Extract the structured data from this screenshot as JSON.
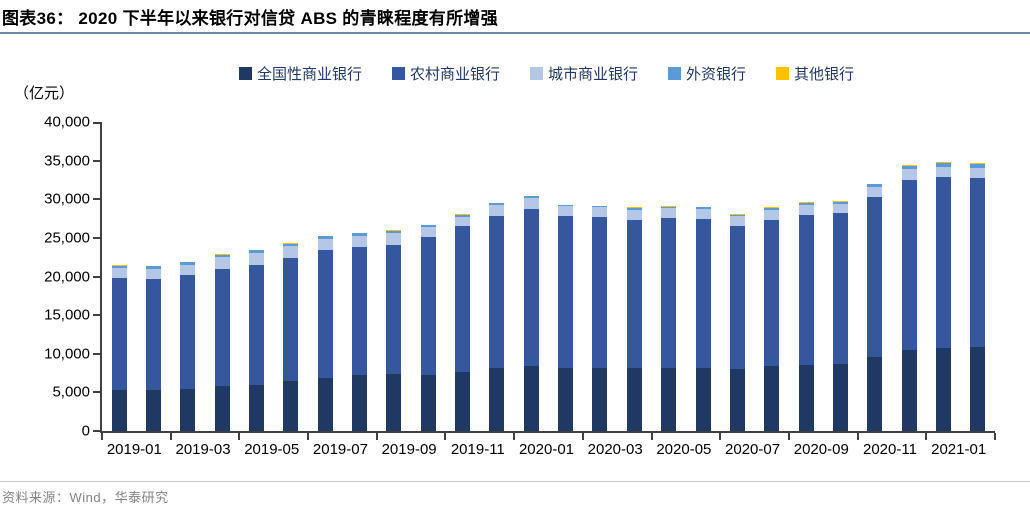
{
  "header": {
    "title": "图表36：  2020 下半年以来银行对信贷 ABS 的青睐程度有所增强"
  },
  "footer": {
    "source": "资料来源：Wind，华泰研究"
  },
  "colors": {
    "title_rule": "#6E89A9",
    "axis": "#404040",
    "footer_rule": "#C6C6C6",
    "footer_text": "#838383",
    "legend_text": "#1F3864"
  },
  "chart_data": {
    "type": "bar",
    "stacked": true,
    "title": "2020 下半年以来银行对信贷 ABS 的青睐程度有所增强",
    "unit_label": "（亿元）",
    "xlabel": "",
    "ylabel": "亿元",
    "ylim": [
      0,
      40000
    ],
    "ytick_step": 5000,
    "grid": false,
    "legend_position": "top",
    "categories": [
      "2019-01",
      "2019-02",
      "2019-03",
      "2019-04",
      "2019-05",
      "2019-06",
      "2019-07",
      "2019-08",
      "2019-09",
      "2019-10",
      "2019-11",
      "2019-12",
      "2020-01",
      "2020-02",
      "2020-03",
      "2020-04",
      "2020-05",
      "2020-06",
      "2020-07",
      "2020-08",
      "2020-09",
      "2020-10",
      "2020-11",
      "2020-12",
      "2021-01",
      "2021-02"
    ],
    "xtick_labels": [
      "2019-01",
      "2019-03",
      "2019-05",
      "2019-07",
      "2019-09",
      "2019-11",
      "2020-01",
      "2020-03",
      "2020-05",
      "2020-07",
      "2020-09",
      "2020-11",
      "2021-01"
    ],
    "series": [
      {
        "name": "全国性商业银行",
        "color": "#1F3864",
        "values": [
          5250,
          5250,
          5450,
          5800,
          6000,
          6450,
          6900,
          7300,
          7400,
          7300,
          7650,
          8150,
          8400,
          8100,
          8150,
          8100,
          8100,
          8170,
          8000,
          8390,
          8550,
          8680,
          9550,
          10480,
          10740,
          10820
        ]
      },
      {
        "name": "农村商业银行",
        "color": "#34579D",
        "values": [
          14500,
          14450,
          14700,
          15150,
          15450,
          16000,
          16550,
          16500,
          16700,
          17800,
          18850,
          19700,
          20400,
          19700,
          19550,
          19270,
          19490,
          19290,
          18550,
          18940,
          19350,
          19510,
          20750,
          22000,
          22160,
          21960
        ]
      },
      {
        "name": "城市商业银行",
        "color": "#B4C7E7",
        "values": [
          1370,
          1330,
          1400,
          1580,
          1600,
          1500,
          1450,
          1500,
          1500,
          1290,
          1250,
          1380,
          1350,
          1290,
          1250,
          1250,
          1240,
          1240,
          1250,
          1290,
          1360,
          1160,
          1350,
          1500,
          1290,
          1320
        ]
      },
      {
        "name": "外资银行",
        "color": "#5B9BD5",
        "values": [
          290,
          310,
          310,
          300,
          330,
          310,
          340,
          320,
          350,
          300,
          260,
          230,
          220,
          180,
          170,
          280,
          220,
          290,
          200,
          300,
          300,
          250,
          280,
          340,
          480,
          500
        ]
      },
      {
        "name": "其他银行",
        "color": "#FFC000",
        "values": [
          30,
          30,
          40,
          80,
          40,
          40,
          40,
          40,
          40,
          40,
          40,
          40,
          40,
          40,
          40,
          40,
          40,
          40,
          40,
          40,
          40,
          130,
          70,
          130,
          130,
          100
        ]
      }
    ]
  }
}
